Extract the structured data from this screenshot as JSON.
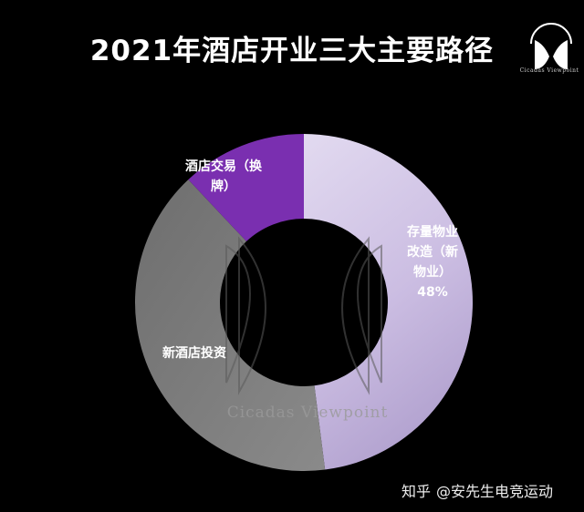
{
  "title": "2021年酒店开业三大主要路径",
  "logo_text": "Cicadas Viewpoint",
  "watermark": "Cicadas Viewpoint",
  "credit": {
    "site": "知乎",
    "author": "@安先生电竞运动"
  },
  "chart_data": {
    "type": "pie",
    "style": "donut",
    "slices": [
      {
        "label_lines": [
          "存量物业",
          "改造（新",
          "物业）"
        ],
        "value_label": "48%",
        "value": 48,
        "color": "#d4c9e6",
        "label_color": "#ffffff"
      },
      {
        "label_lines": [
          "新酒店投资"
        ],
        "value_label": "",
        "value": 40,
        "color": "#7a7a7a",
        "label_color": "#ffffff"
      },
      {
        "label_lines": [
          "酒店交易（换",
          "牌）"
        ],
        "value_label": "",
        "value": 12,
        "color": "#7a2fb0",
        "label_color": "#ffffff"
      }
    ],
    "start_angle_deg": 0,
    "direction": "clockwise",
    "title": "2021年酒店开业三大主要路径",
    "legend": "none"
  }
}
